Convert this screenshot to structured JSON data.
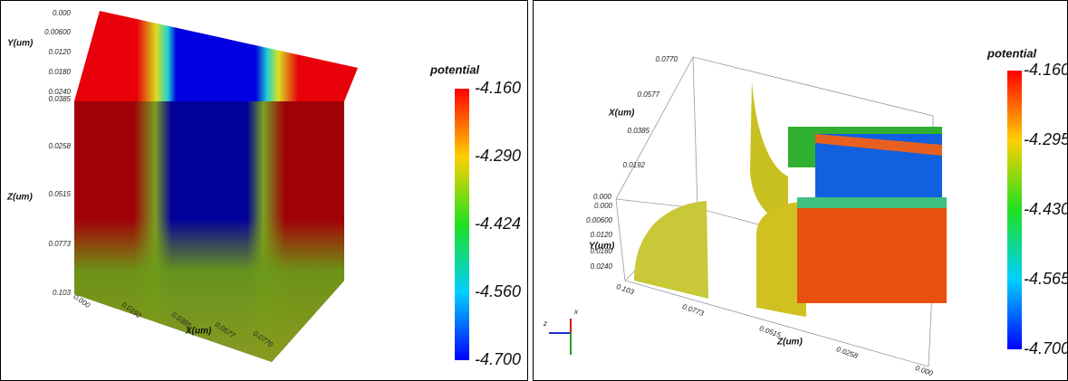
{
  "left_panel": {
    "colorbar": {
      "title": "potential",
      "labels": [
        "-4.160",
        "-4.290",
        "-4.424",
        "-4.560",
        "-4.700"
      ]
    },
    "axes": {
      "y": {
        "label": "Y(um)",
        "ticks": [
          "0.000",
          "0.00600",
          "0.0120",
          "0.0180",
          "0.0240"
        ]
      },
      "z": {
        "label": "Z(um)",
        "ticks": [
          "0.0385",
          "0.0258",
          "0.0515",
          "0.0773",
          "0.103"
        ]
      },
      "x": {
        "label": "X(um)",
        "ticks": [
          "0.000",
          "0.0192",
          "0.0385",
          "0.0577",
          "0.0770"
        ]
      }
    }
  },
  "right_panel": {
    "colorbar": {
      "title": "potential",
      "labels": [
        "-4.160",
        "-4.295",
        "-4.430",
        "-4.565",
        "-4.700"
      ]
    },
    "axes": {
      "x": {
        "label": "X(um)",
        "ticks": [
          "0.0770",
          "0.0577",
          "0.0385",
          "0.0192",
          "0.000"
        ]
      },
      "y": {
        "label": "Y(um)",
        "ticks": [
          "0.000",
          "0.00600",
          "0.0120",
          "0.0180",
          "0.0240"
        ]
      },
      "z": {
        "label": "Z(um)",
        "ticks": [
          "0.103",
          "0.0773",
          "0.0515",
          "0.0258",
          "0.000"
        ]
      }
    },
    "orientation": [
      "z",
      "x"
    ]
  }
}
